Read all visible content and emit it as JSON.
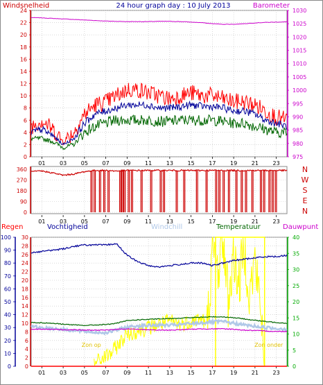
{
  "colors": {
    "wind": "#ff0000",
    "wind_dir": "#cc0000",
    "barometer": "#cc00cc",
    "humidity": "#000099",
    "windchill": "#b0c8e8",
    "temperature": "#006600",
    "dewpoint": "#cc00cc",
    "rain": "#ff0000",
    "sun": "#ffff00",
    "sun_label": "#e0c000",
    "axis_left_top": "#cc0000",
    "axis_right_top": "#cc00cc",
    "axis_right_bottom": "#00aa00",
    "axis_left_bottom": "#000099",
    "grid": "#c0c0c0",
    "frame": "#888888"
  },
  "chart_data": [
    {
      "type": "line",
      "title": "24 hour graph day : 10 July 2013",
      "left_label": "Windsnelheid",
      "right_label": "Barometer",
      "y_left_ticks": [
        "24",
        "22",
        "20",
        "18",
        "16",
        "14",
        "12",
        "10",
        "8",
        "6",
        "4",
        "2",
        "0"
      ],
      "y_left_range": [
        0,
        24
      ],
      "y_right_ticks": [
        "1030",
        "1025",
        "1020",
        "1015",
        "1010",
        "1005",
        "1000",
        "995",
        "990",
        "985",
        "980",
        "975"
      ],
      "y_right_range": [
        975,
        1030
      ],
      "x_ticks": [
        "01",
        "03",
        "05",
        "07",
        "09",
        "11",
        "13",
        "15",
        "17",
        "19",
        "21",
        "23"
      ],
      "x_range_hours": [
        0,
        24
      ],
      "series": [
        {
          "key": "barometer",
          "x": [
            0,
            1,
            2,
            3,
            4,
            5,
            6,
            7,
            8,
            9,
            10,
            11,
            12,
            13,
            14,
            15,
            16,
            17,
            18,
            19,
            20,
            21,
            22,
            23,
            24
          ],
          "y": [
            1027.3,
            1027.2,
            1027.0,
            1026.8,
            1026.6,
            1026.4,
            1026.2,
            1026.0,
            1025.9,
            1025.8,
            1025.8,
            1025.8,
            1025.9,
            1025.9,
            1025.8,
            1025.6,
            1025.4,
            1025.0,
            1024.8,
            1024.8,
            1025.0,
            1025.3,
            1025.5,
            1025.6,
            1025.7
          ]
        },
        {
          "key": "gust",
          "x": [
            0,
            1,
            2,
            3,
            4,
            5,
            6,
            7,
            8,
            9,
            10,
            11,
            12,
            13,
            14,
            15,
            16,
            17,
            18,
            19,
            20,
            21,
            22,
            23,
            24
          ],
          "y": [
            5,
            6,
            4.5,
            2.5,
            4,
            7,
            8.5,
            9,
            10,
            11,
            11,
            10.5,
            10,
            9.5,
            10,
            10.5,
            10,
            10,
            9.5,
            9,
            9,
            8.5,
            7.5,
            6.5,
            6
          ]
        },
        {
          "key": "average",
          "x": [
            0,
            1,
            2,
            3,
            4,
            5,
            6,
            7,
            8,
            9,
            10,
            11,
            12,
            13,
            14,
            15,
            16,
            17,
            18,
            19,
            20,
            21,
            22,
            23,
            24
          ],
          "y": [
            4,
            4.5,
            3.5,
            2,
            3,
            5.5,
            7,
            7.5,
            8,
            8.5,
            8.5,
            8.5,
            8,
            8,
            8.2,
            8.5,
            8.3,
            8.2,
            8,
            7.5,
            7.5,
            7,
            6,
            5.5,
            5
          ]
        },
        {
          "key": "min",
          "x": [
            0,
            1,
            2,
            3,
            4,
            5,
            6,
            7,
            8,
            9,
            10,
            11,
            12,
            13,
            14,
            15,
            16,
            17,
            18,
            19,
            20,
            21,
            22,
            23,
            24
          ],
          "y": [
            3,
            3,
            2.5,
            1.5,
            2,
            4,
            5,
            5.5,
            6,
            6,
            6,
            6,
            5.8,
            5.8,
            6,
            6,
            6,
            6,
            5.8,
            5.5,
            5.5,
            5,
            4.5,
            4,
            4
          ]
        }
      ]
    },
    {
      "type": "line",
      "title": "",
      "y_left_ticks": [
        "360",
        "270",
        "180",
        "90",
        "0"
      ],
      "y_left_range": [
        0,
        360
      ],
      "compass": [
        "N",
        "W",
        "S",
        "E",
        "N"
      ],
      "x_ticks": [
        "01",
        "03",
        "05",
        "07",
        "09",
        "11",
        "13",
        "15",
        "17",
        "19",
        "21",
        "23"
      ],
      "series": [
        {
          "key": "wind_dir",
          "x": [
            0,
            1,
            2,
            3,
            4,
            5,
            6,
            7,
            8,
            9,
            10,
            11,
            12,
            13,
            14,
            15,
            16,
            17,
            18,
            19,
            20,
            21,
            22,
            23,
            24
          ],
          "y": [
            340,
            345,
            330,
            310,
            320,
            340,
            350,
            350,
            345,
            350,
            350,
            350,
            350,
            350,
            350,
            350,
            350,
            350,
            350,
            350,
            350,
            350,
            350,
            350,
            350
          ]
        }
      ],
      "drops_hours": [
        5.6,
        5.9,
        6.4,
        6.8,
        7.2,
        8.3,
        8.5,
        8.7,
        9.1,
        9.4,
        10.3,
        11.2,
        12.1,
        12.4,
        13.6,
        14.3,
        15.5,
        16.4,
        17.3,
        17.6,
        18.0,
        18.5,
        19.2,
        19.7,
        20.1,
        20.7,
        21.5,
        21.8,
        22.3,
        22.6,
        22.9
      ]
    },
    {
      "type": "line",
      "title": "",
      "legend": [
        "Regen",
        "Vochtigheid",
        "Windchill",
        "Temperatuur",
        "Dauwpunt"
      ],
      "y_left_humidity_ticks": [
        "100",
        "90",
        "80",
        "70",
        "60",
        "50",
        "40",
        "30",
        "20",
        "10",
        "0"
      ],
      "y_left_humidity_range": [
        0,
        100
      ],
      "y_left_temp_ticks": [
        "30",
        "28",
        "26",
        "24",
        "22",
        "20",
        "18",
        "16",
        "14",
        "12",
        "10",
        "8",
        "6",
        "4",
        "2",
        "0"
      ],
      "y_left_temp_range": [
        0,
        30
      ],
      "y_right_ticks": [
        "40",
        "35",
        "30",
        "25",
        "20",
        "15",
        "10",
        "5",
        "0"
      ],
      "y_right_range": [
        0,
        40
      ],
      "x_ticks": [
        "01",
        "03",
        "05",
        "07",
        "09",
        "11",
        "13",
        "15",
        "17",
        "19",
        "21",
        "23"
      ],
      "annotations": [
        "Zon op",
        "Zon onder"
      ],
      "sunrise_hour": 5.9,
      "sunset_hour": 21.9,
      "series": [
        {
          "key": "humidity",
          "x": [
            0,
            1,
            2,
            3,
            4,
            5,
            6,
            7,
            8,
            9,
            10,
            11,
            12,
            13,
            14,
            15,
            16,
            17,
            18,
            19,
            20,
            21,
            22,
            23,
            24
          ],
          "y": [
            88,
            89,
            90,
            91,
            93,
            94,
            94,
            94,
            95,
            86,
            81,
            78,
            77,
            78,
            79,
            80,
            80,
            78,
            80,
            82,
            83,
            84,
            85,
            85,
            86
          ]
        },
        {
          "key": "temperature",
          "x": [
            0,
            1,
            2,
            3,
            4,
            5,
            6,
            7,
            8,
            9,
            10,
            11,
            12,
            13,
            14,
            15,
            16,
            17,
            18,
            19,
            20,
            21,
            22,
            23,
            24
          ],
          "y": [
            10.2,
            10.1,
            10.0,
            9.8,
            9.6,
            9.5,
            9.6,
            9.7,
            10.0,
            10.6,
            10.8,
            10.9,
            11.0,
            11.1,
            11.2,
            11.3,
            11.4,
            11.5,
            11.5,
            11.3,
            11.0,
            10.7,
            10.4,
            10.2,
            10.0
          ]
        },
        {
          "key": "windchill",
          "x": [
            0,
            1,
            2,
            3,
            4,
            5,
            6,
            7,
            8,
            9,
            10,
            11,
            12,
            13,
            14,
            15,
            16,
            17,
            18,
            19,
            20,
            21,
            22,
            23,
            24
          ],
          "y": [
            9.2,
            9.0,
            8.8,
            8.6,
            8.3,
            8.1,
            7.9,
            7.8,
            8.4,
            9.1,
            9.4,
            9.5,
            9.6,
            9.5,
            9.7,
            9.9,
            10.1,
            10.3,
            10.4,
            10.0,
            9.6,
            9.3,
            9.0,
            8.8,
            8.7
          ]
        },
        {
          "key": "dewpoint",
          "x": [
            0,
            1,
            2,
            3,
            4,
            5,
            6,
            7,
            8,
            9,
            10,
            11,
            12,
            13,
            14,
            15,
            16,
            17,
            18,
            19,
            20,
            21,
            22,
            23,
            24
          ],
          "y": [
            8.6,
            8.6,
            8.6,
            8.5,
            8.5,
            8.4,
            8.4,
            8.4,
            8.6,
            8.7,
            8.6,
            8.5,
            8.4,
            8.4,
            8.5,
            8.6,
            8.7,
            8.7,
            8.7,
            8.6,
            8.4,
            8.3,
            8.2,
            8.1,
            8.1
          ]
        },
        {
          "key": "sun",
          "x": [
            5.9,
            6.5,
            7.0,
            7.5,
            8.0,
            8.5,
            9.0,
            10,
            11,
            12,
            13,
            14,
            15,
            16,
            16.5,
            17.0,
            17.5,
            18.0,
            18.5,
            19.0,
            19.5,
            20.0,
            20.5,
            21.0,
            21.5,
            21.9
          ],
          "y": [
            1,
            2,
            3,
            4,
            6,
            8,
            10,
            11,
            12,
            13,
            14,
            13,
            14,
            15,
            12,
            35,
            30,
            40,
            20,
            35,
            25,
            38,
            22,
            33,
            18,
            5
          ]
        },
        {
          "key": "rain",
          "x": [
            0,
            24
          ],
          "y": [
            0,
            0
          ]
        }
      ]
    }
  ]
}
